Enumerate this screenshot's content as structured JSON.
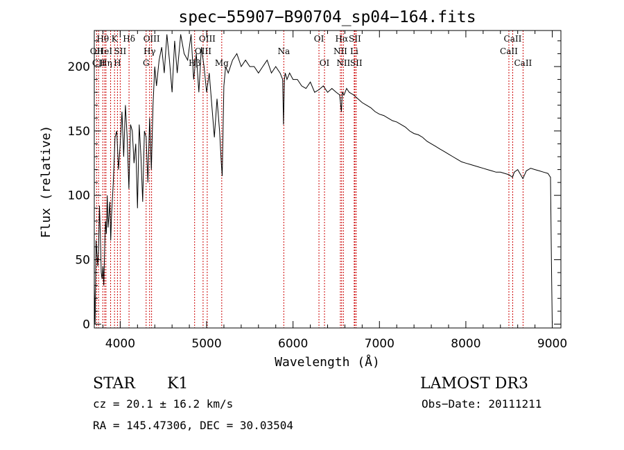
{
  "chart_data": {
    "type": "line",
    "title": "spec−55907−B90704_sp04−164.fits",
    "xlabel": "Wavelength (Å)",
    "ylabel": "Flux (relative)",
    "xlim": [
      3700,
      9100
    ],
    "ylim": [
      -3,
      228
    ],
    "x_ticks": [
      4000,
      5000,
      6000,
      7000,
      8000,
      9000
    ],
    "y_ticks": [
      0,
      50,
      100,
      150,
      200
    ],
    "grid": false,
    "series": [
      {
        "x": [
          3700,
          3710,
          3720,
          3730,
          3740,
          3750,
          3760,
          3770,
          3780,
          3790,
          3800,
          3810,
          3820,
          3830,
          3840,
          3850,
          3860,
          3870,
          3880,
          3890,
          3900,
          3920,
          3940,
          3960,
          3980,
          4000,
          4020,
          4040,
          4060,
          4080,
          4100,
          4120,
          4140,
          4160,
          4180,
          4200,
          4220,
          4240,
          4260,
          4280,
          4300,
          4320,
          4340,
          4360,
          4380,
          4400,
          4420,
          4450,
          4480,
          4510,
          4540,
          4570,
          4600,
          4630,
          4660,
          4700,
          4740,
          4780,
          4820,
          4850,
          4880,
          4910,
          4940,
          4970,
          5000,
          5030,
          5060,
          5090,
          5120,
          5150,
          5170,
          5180,
          5190,
          5200,
          5220,
          5250,
          5300,
          5350,
          5400,
          5450,
          5500,
          5550,
          5600,
          5650,
          5700,
          5750,
          5800,
          5850,
          5880,
          5890,
          5900,
          5910,
          5930,
          5960,
          6000,
          6050,
          6100,
          6150,
          6200,
          6250,
          6300,
          6350,
          6400,
          6450,
          6500,
          6540,
          6560,
          6570,
          6590,
          6620,
          6650,
          6700,
          6750,
          6800,
          6850,
          6900,
          6950,
          7000,
          7050,
          7100,
          7150,
          7200,
          7250,
          7300,
          7350,
          7400,
          7450,
          7500,
          7550,
          7600,
          7650,
          7700,
          7750,
          7800,
          7850,
          7900,
          7950,
          8000,
          8050,
          8100,
          8150,
          8200,
          8250,
          8300,
          8350,
          8400,
          8450,
          8500,
          8540,
          8560,
          8600,
          8660,
          8700,
          8750,
          8800,
          8850,
          8900,
          8950,
          8980,
          8990,
          9000
        ],
        "values": [
          30,
          0,
          65,
          55,
          45,
          60,
          92,
          70,
          40,
          35,
          45,
          30,
          60,
          80,
          70,
          100,
          75,
          85,
          95,
          65,
          85,
          110,
          145,
          150,
          120,
          140,
          165,
          130,
          170,
          145,
          105,
          155,
          150,
          125,
          140,
          90,
          155,
          130,
          95,
          150,
          145,
          110,
          160,
          120,
          170,
          200,
          185,
          205,
          215,
          195,
          225,
          205,
          180,
          220,
          195,
          225,
          210,
          205,
          225,
          190,
          210,
          180,
          215,
          200,
          180,
          195,
          170,
          145,
          175,
          150,
          125,
          115,
          150,
          185,
          200,
          195,
          205,
          210,
          200,
          205,
          200,
          200,
          195,
          200,
          205,
          195,
          200,
          195,
          190,
          155,
          190,
          195,
          190,
          195,
          190,
          190,
          185,
          183,
          188,
          180,
          182,
          185,
          180,
          183,
          180,
          178,
          165,
          180,
          178,
          183,
          180,
          178,
          175,
          172,
          170,
          168,
          165,
          163,
          162,
          160,
          158,
          157,
          155,
          153,
          150,
          148,
          147,
          145,
          142,
          140,
          138,
          136,
          134,
          132,
          130,
          128,
          126,
          125,
          124,
          123,
          122,
          121,
          120,
          119,
          118,
          118,
          117,
          116,
          114,
          118,
          120,
          113,
          119,
          121,
          120,
          119,
          118,
          117,
          114,
          50,
          0
        ]
      }
    ],
    "spectral_lines": [
      {
        "wavelength": 3727,
        "label": "OII",
        "row": 2
      },
      {
        "wavelength": 3750,
        "label": "CII",
        "row": 3
      },
      {
        "wavelength": 3798,
        "label": "Hθ",
        "row": 1
      },
      {
        "wavelength": 3820,
        "label": "HeI",
        "row": 2
      },
      {
        "wavelength": 3835,
        "label": "Hη",
        "row": 3
      },
      {
        "wavelength": 3889,
        "label": "",
        "row": 0
      },
      {
        "wavelength": 3934,
        "label": "K",
        "row": 1
      },
      {
        "wavelength": 3968,
        "label": "H",
        "row": 3
      },
      {
        "wavelength": 4000,
        "label": "SII",
        "row": 2
      },
      {
        "wavelength": 4102,
        "label": "Hδ",
        "row": 1
      },
      {
        "wavelength": 4300,
        "label": "G",
        "row": 3
      },
      {
        "wavelength": 4340,
        "label": "Hγ",
        "row": 2
      },
      {
        "wavelength": 4363,
        "label": "OIII",
        "row": 1
      },
      {
        "wavelength": 4861,
        "label": "Hβ",
        "row": 3
      },
      {
        "wavelength": 4959,
        "label": "OIII",
        "row": 2
      },
      {
        "wavelength": 5007,
        "label": "OIII",
        "row": 1
      },
      {
        "wavelength": 5175,
        "label": "Mg",
        "row": 3
      },
      {
        "wavelength": 5893,
        "label": "Na",
        "row": 2
      },
      {
        "wavelength": 6300,
        "label": "OI",
        "row": 1
      },
      {
        "wavelength": 6364,
        "label": "OI",
        "row": 3
      },
      {
        "wavelength": 6548,
        "label": "NII",
        "row": 2
      },
      {
        "wavelength": 6563,
        "label": "Hα",
        "row": 1
      },
      {
        "wavelength": 6583,
        "label": "NII",
        "row": 3
      },
      {
        "wavelength": 6708,
        "label": "Li",
        "row": 2
      },
      {
        "wavelength": 6716,
        "label": "SII",
        "row": 1
      },
      {
        "wavelength": 6731,
        "label": "SII",
        "row": 3
      },
      {
        "wavelength": 8498,
        "label": "CaII",
        "row": 2
      },
      {
        "wavelength": 8542,
        "label": "CaII",
        "row": 1
      },
      {
        "wavelength": 8662,
        "label": "CaII",
        "row": 3
      }
    ]
  },
  "info": {
    "class": "STAR",
    "subclass": "K1",
    "cz": "cz = 20.1 ± 16.2 km/s",
    "coords": "RA = 145.47306, DEC =  30.03504",
    "survey": "LAMOST DR3",
    "obs_date": "Obs−Date: 20111211"
  }
}
